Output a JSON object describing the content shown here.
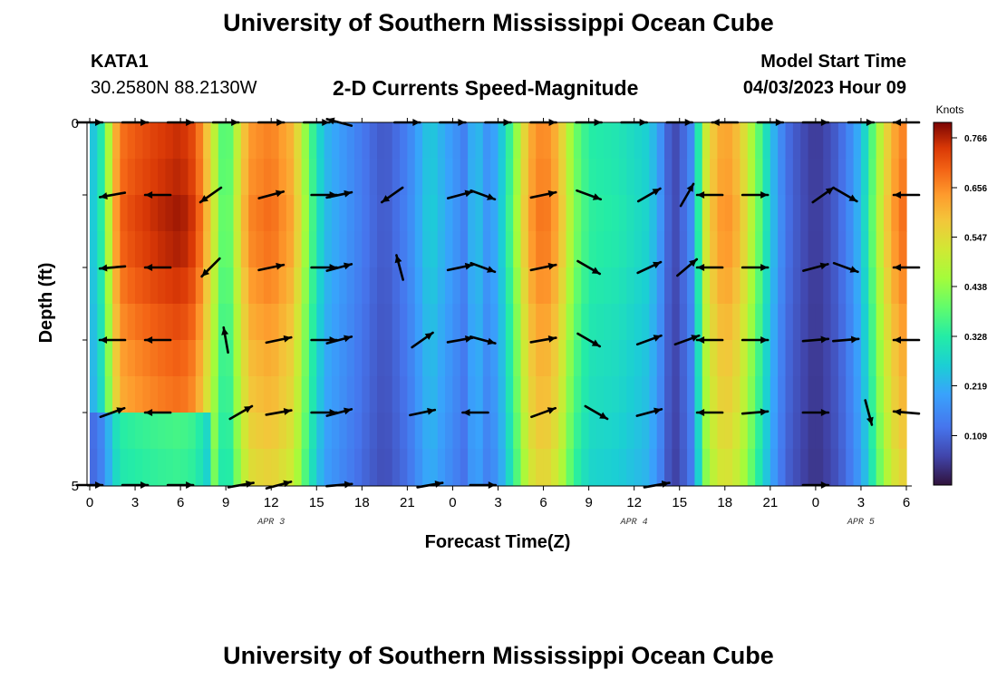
{
  "page": {
    "title": "University of Southern Mississippi Ocean Cube",
    "second_title": "University of Southern Mississippi Ocean Cube"
  },
  "station": {
    "id": "KATA1",
    "coords": "30.2580N  88.2130W"
  },
  "model_start": {
    "label": "Model Start Time",
    "value": "04/03/2023 Hour 09"
  },
  "chart_data": {
    "type": "heatmap",
    "title": "2-D Currents Speed-Magnitude",
    "xlabel": "Forecast Time(Z)",
    "ylabel": "Depth (ft)",
    "x_unit": "hours from 04/03/2023 00Z",
    "x_range": [
      0,
      54
    ],
    "y_range": [
      0,
      5
    ],
    "x_tick_labels": [
      "0",
      "3",
      "6",
      "9",
      "12",
      "15",
      "18",
      "21",
      "0",
      "3",
      "6",
      "9",
      "12",
      "15",
      "18",
      "21",
      "0",
      "3",
      "6"
    ],
    "y_tick_labels": [
      "0",
      "5"
    ],
    "date_labels": [
      {
        "text": "APR 3",
        "hour": 12
      },
      {
        "text": "APR 4",
        "hour": 36
      },
      {
        "text": "APR 5",
        "hour": 51
      }
    ],
    "colorbar": {
      "label": "Knots",
      "min": 0.0,
      "max": 0.8,
      "ticks": [
        0.109,
        0.219,
        0.328,
        0.438,
        0.547,
        0.656,
        0.766
      ]
    },
    "speed_profile_kn": [
      [
        0,
        0.24
      ],
      [
        0.5,
        0.28
      ],
      [
        1,
        0.38
      ],
      [
        1.5,
        0.58
      ],
      [
        2,
        0.7
      ],
      [
        3,
        0.73
      ],
      [
        4.5,
        0.76
      ],
      [
        6,
        0.78
      ],
      [
        7,
        0.74
      ],
      [
        8,
        0.56
      ],
      [
        9,
        0.34
      ],
      [
        9.5,
        0.46
      ],
      [
        10.5,
        0.66
      ],
      [
        12,
        0.69
      ],
      [
        13.5,
        0.62
      ],
      [
        14.5,
        0.4
      ],
      [
        15.5,
        0.24
      ],
      [
        17,
        0.18
      ],
      [
        18.5,
        0.12
      ],
      [
        19.5,
        0.09
      ],
      [
        21,
        0.15
      ],
      [
        22.5,
        0.27
      ],
      [
        24,
        0.19
      ],
      [
        25,
        0.14
      ],
      [
        25.5,
        0.3
      ],
      [
        26,
        0.17
      ],
      [
        27,
        0.22
      ],
      [
        28,
        0.4
      ],
      [
        29,
        0.63
      ],
      [
        30,
        0.69
      ],
      [
        31,
        0.62
      ],
      [
        32,
        0.43
      ],
      [
        33,
        0.34
      ],
      [
        35,
        0.32
      ],
      [
        37,
        0.27
      ],
      [
        38,
        0.15
      ],
      [
        38.5,
        0.06
      ],
      [
        39,
        0.09
      ],
      [
        40,
        0.19
      ],
      [
        40.5,
        0.47
      ],
      [
        41,
        0.58
      ],
      [
        42,
        0.66
      ],
      [
        43,
        0.6
      ],
      [
        44,
        0.44
      ],
      [
        45,
        0.26
      ],
      [
        46,
        0.13
      ],
      [
        47,
        0.08
      ],
      [
        48,
        0.05
      ],
      [
        49,
        0.08
      ],
      [
        50,
        0.14
      ],
      [
        51,
        0.24
      ],
      [
        51.5,
        0.33
      ],
      [
        52,
        0.45
      ],
      [
        53,
        0.63
      ],
      [
        54,
        0.7
      ]
    ],
    "depth_factor": [
      0.97,
      0.98,
      1.0,
      0.99,
      0.96,
      0.93,
      0.9,
      0.88,
      0.85,
      0.82
    ],
    "vectors": [
      {
        "hour": 0,
        "depth": 0,
        "angle": 0
      },
      {
        "hour": 3,
        "depth": 0,
        "angle": 0
      },
      {
        "hour": 6,
        "depth": 0,
        "angle": 0
      },
      {
        "hour": 9,
        "depth": 0,
        "angle": 0
      },
      {
        "hour": 12,
        "depth": 0,
        "angle": 0
      },
      {
        "hour": 15,
        "depth": 0,
        "angle": 0
      },
      {
        "hour": 16.5,
        "depth": 0,
        "angle": 165
      },
      {
        "hour": 21,
        "depth": 0,
        "angle": 0
      },
      {
        "hour": 24,
        "depth": 0,
        "angle": 0
      },
      {
        "hour": 27,
        "depth": 0,
        "angle": 0
      },
      {
        "hour": 30,
        "depth": 0,
        "angle": 0
      },
      {
        "hour": 33,
        "depth": 0,
        "angle": 0
      },
      {
        "hour": 36,
        "depth": 0,
        "angle": 0
      },
      {
        "hour": 39,
        "depth": 0,
        "angle": 0
      },
      {
        "hour": 42,
        "depth": 0,
        "angle": 180
      },
      {
        "hour": 45,
        "depth": 0,
        "angle": 0
      },
      {
        "hour": 48,
        "depth": 0,
        "angle": 0
      },
      {
        "hour": 51,
        "depth": 0,
        "angle": 0
      },
      {
        "hour": 54,
        "depth": 0,
        "angle": 180
      },
      {
        "hour": 1.5,
        "depth": 1,
        "angle": 190
      },
      {
        "hour": 4.5,
        "depth": 1,
        "angle": 180
      },
      {
        "hour": 8,
        "depth": 1,
        "angle": 215
      },
      {
        "hour": 12,
        "depth": 1,
        "angle": 15
      },
      {
        "hour": 15.5,
        "depth": 1,
        "angle": 0
      },
      {
        "hour": 16.5,
        "depth": 1,
        "angle": 12
      },
      {
        "hour": 20,
        "depth": 1,
        "angle": 215
      },
      {
        "hour": 24.5,
        "depth": 1,
        "angle": 15
      },
      {
        "hour": 26,
        "depth": 1,
        "angle": 340
      },
      {
        "hour": 30,
        "depth": 1,
        "angle": 12
      },
      {
        "hour": 33,
        "depth": 1,
        "angle": 340
      },
      {
        "hour": 37,
        "depth": 1,
        "angle": 30
      },
      {
        "hour": 39.5,
        "depth": 1,
        "angle": 60
      },
      {
        "hour": 41,
        "depth": 1,
        "angle": 180
      },
      {
        "hour": 44,
        "depth": 1,
        "angle": 0
      },
      {
        "hour": 48.5,
        "depth": 1,
        "angle": 35
      },
      {
        "hour": 50,
        "depth": 1,
        "angle": 330
      },
      {
        "hour": 54,
        "depth": 1,
        "angle": 180
      },
      {
        "hour": 1.5,
        "depth": 2,
        "angle": 185
      },
      {
        "hour": 4.5,
        "depth": 2,
        "angle": 180
      },
      {
        "hour": 8,
        "depth": 2,
        "angle": 225
      },
      {
        "hour": 12,
        "depth": 2,
        "angle": 12
      },
      {
        "hour": 15.5,
        "depth": 2,
        "angle": 0
      },
      {
        "hour": 16.5,
        "depth": 2,
        "angle": 15
      },
      {
        "hour": 20.5,
        "depth": 2,
        "angle": 105
      },
      {
        "hour": 24.5,
        "depth": 2,
        "angle": 12
      },
      {
        "hour": 26,
        "depth": 2,
        "angle": 340
      },
      {
        "hour": 30,
        "depth": 2,
        "angle": 12
      },
      {
        "hour": 33,
        "depth": 2,
        "angle": 330
      },
      {
        "hour": 37,
        "depth": 2,
        "angle": 25
      },
      {
        "hour": 39.5,
        "depth": 2,
        "angle": 40
      },
      {
        "hour": 41,
        "depth": 2,
        "angle": 180
      },
      {
        "hour": 44,
        "depth": 2,
        "angle": 0
      },
      {
        "hour": 48,
        "depth": 2,
        "angle": 15
      },
      {
        "hour": 50,
        "depth": 2,
        "angle": 340
      },
      {
        "hour": 54,
        "depth": 2,
        "angle": 180
      },
      {
        "hour": 1.5,
        "depth": 3,
        "angle": 180
      },
      {
        "hour": 4.5,
        "depth": 3,
        "angle": 180
      },
      {
        "hour": 9,
        "depth": 3,
        "angle": 100
      },
      {
        "hour": 12.5,
        "depth": 3,
        "angle": 12
      },
      {
        "hour": 15.5,
        "depth": 3,
        "angle": 0
      },
      {
        "hour": 16.5,
        "depth": 3,
        "angle": 15
      },
      {
        "hour": 22,
        "depth": 3,
        "angle": 35
      },
      {
        "hour": 24.5,
        "depth": 3,
        "angle": 10
      },
      {
        "hour": 26,
        "depth": 3,
        "angle": 345
      },
      {
        "hour": 30,
        "depth": 3,
        "angle": 10
      },
      {
        "hour": 33,
        "depth": 3,
        "angle": 330
      },
      {
        "hour": 37,
        "depth": 3,
        "angle": 20
      },
      {
        "hour": 39.5,
        "depth": 3,
        "angle": 20
      },
      {
        "hour": 41,
        "depth": 3,
        "angle": 180
      },
      {
        "hour": 44,
        "depth": 3,
        "angle": 0
      },
      {
        "hour": 48,
        "depth": 3,
        "angle": 5
      },
      {
        "hour": 50,
        "depth": 3,
        "angle": 5
      },
      {
        "hour": 54,
        "depth": 3,
        "angle": 180
      },
      {
        "hour": 1.5,
        "depth": 4,
        "angle": 20
      },
      {
        "hour": 4.5,
        "depth": 4,
        "angle": 180
      },
      {
        "hour": 10,
        "depth": 4,
        "angle": 30
      },
      {
        "hour": 12.5,
        "depth": 4,
        "angle": 10
      },
      {
        "hour": 15.5,
        "depth": 4,
        "angle": 0
      },
      {
        "hour": 16.5,
        "depth": 4,
        "angle": 15
      },
      {
        "hour": 22,
        "depth": 4,
        "angle": 12
      },
      {
        "hour": 25.5,
        "depth": 4,
        "angle": 180
      },
      {
        "hour": 30,
        "depth": 4,
        "angle": 20
      },
      {
        "hour": 33.5,
        "depth": 4,
        "angle": 330
      },
      {
        "hour": 37,
        "depth": 4,
        "angle": 15
      },
      {
        "hour": 41,
        "depth": 4,
        "angle": 180
      },
      {
        "hour": 44,
        "depth": 4,
        "angle": 5
      },
      {
        "hour": 48,
        "depth": 4,
        "angle": 0
      },
      {
        "hour": 51.5,
        "depth": 4,
        "angle": 285
      },
      {
        "hour": 54,
        "depth": 4,
        "angle": 175
      },
      {
        "hour": 0,
        "depth": 5,
        "angle": 0
      },
      {
        "hour": 3,
        "depth": 5,
        "angle": 0
      },
      {
        "hour": 6,
        "depth": 5,
        "angle": 0
      },
      {
        "hour": 10,
        "depth": 5,
        "angle": 10
      },
      {
        "hour": 12.5,
        "depth": 5,
        "angle": 15
      },
      {
        "hour": 16.5,
        "depth": 5,
        "angle": 5
      },
      {
        "hour": 22.5,
        "depth": 5,
        "angle": 10
      },
      {
        "hour": 26,
        "depth": 5,
        "angle": 0
      },
      {
        "hour": 37.5,
        "depth": 5,
        "angle": 10
      },
      {
        "hour": 48,
        "depth": 5,
        "angle": 0
      }
    ]
  }
}
